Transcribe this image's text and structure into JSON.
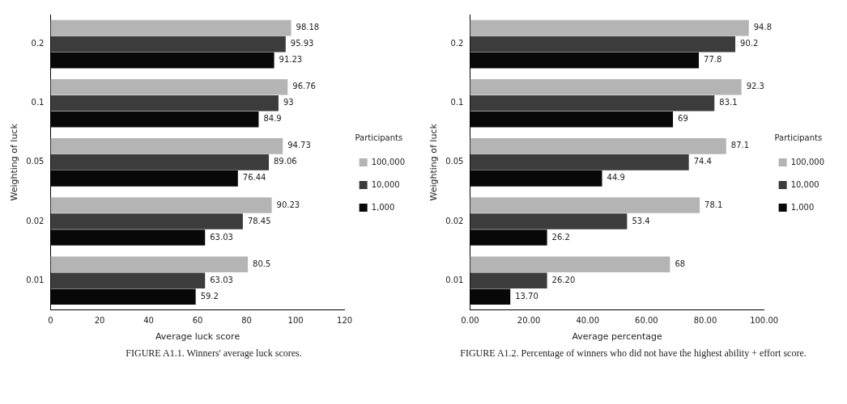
{
  "chart_data": [
    {
      "type": "bar",
      "orientation": "horizontal",
      "categories": [
        "0.2",
        "0.1",
        "0.05",
        "0.02",
        "0.01"
      ],
      "xlabel": "Average luck score",
      "ylabel": "Weighting of luck",
      "legend_title": "Participants",
      "legend": "right",
      "grid": false,
      "xlim": [
        0,
        120
      ],
      "xticks": [
        0,
        20,
        40,
        60,
        80,
        100,
        120
      ],
      "series": [
        {
          "name": "100,000",
          "color": "#b4b4b4",
          "values": [
            98.18,
            96.76,
            94.73,
            90.23,
            80.5
          ],
          "value_labels": [
            "98.18",
            "96.76",
            "94.73",
            "90.23",
            "80.5"
          ]
        },
        {
          "name": "10,000",
          "color": "#3c3c3c",
          "values": [
            95.93,
            93,
            89.06,
            78.45,
            63.03
          ],
          "value_labels": [
            "95.93",
            "93",
            "89.06",
            "78.45",
            "63.03"
          ]
        },
        {
          "name": "1,000",
          "color": "#080808",
          "values": [
            91.23,
            84.9,
            76.44,
            63.03,
            59.2
          ],
          "value_labels": [
            "91.23",
            "84.9",
            "76.44",
            "63.03",
            "59.2"
          ]
        }
      ],
      "annotations": [
        "FIGURE A1.1. Winners' average luck scores."
      ]
    },
    {
      "type": "bar",
      "orientation": "horizontal",
      "categories": [
        "0.2",
        "0.1",
        "0.05",
        "0.02",
        "0.01"
      ],
      "xlabel": "Average percentage",
      "ylabel": "Weighting of luck",
      "legend_title": "Participants",
      "legend": "right",
      "grid": false,
      "xlim": [
        0,
        100
      ],
      "xticks": [
        {
          "value": 0,
          "label": "0.00"
        },
        {
          "value": 20,
          "label": "20.00"
        },
        {
          "value": 40,
          "label": "40.00"
        },
        {
          "value": 60,
          "label": "60.00"
        },
        {
          "value": 80,
          "label": "80.00"
        },
        {
          "value": 100,
          "label": "100.00"
        }
      ],
      "series": [
        {
          "name": "100,000",
          "color": "#b4b4b4",
          "values": [
            94.8,
            92.3,
            87.1,
            78.1,
            68
          ],
          "value_labels": [
            "94.8",
            "92.3",
            "87.1",
            "78.1",
            "68"
          ]
        },
        {
          "name": "10,000",
          "color": "#3c3c3c",
          "values": [
            90.2,
            83.1,
            74.4,
            53.4,
            26.2
          ],
          "value_labels": [
            "90.2",
            "83.1",
            "74.4",
            "53.4",
            "26.20"
          ]
        },
        {
          "name": "1,000",
          "color": "#080808",
          "values": [
            77.8,
            69,
            44.9,
            26.2,
            13.7
          ],
          "value_labels": [
            "77.8",
            "69",
            "44.9",
            "26.2",
            "13.70"
          ]
        }
      ],
      "annotations": [
        "FIGURE A1.2. Percentage of winners who did not have the highest ability + effort score."
      ]
    }
  ]
}
